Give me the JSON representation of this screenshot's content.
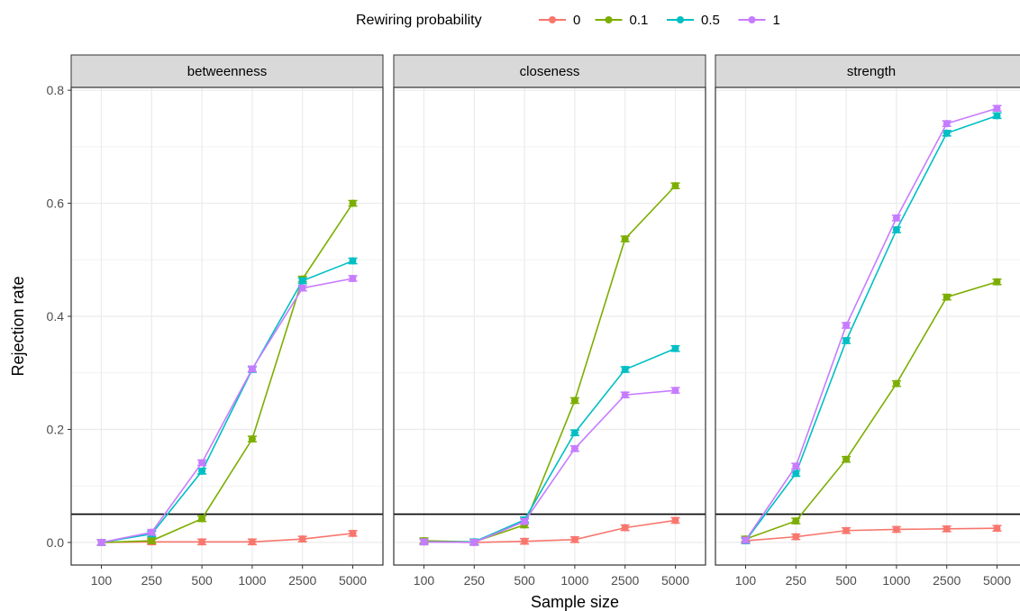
{
  "chart_data": {
    "type": "line",
    "facets": [
      "betweenness",
      "closeness",
      "strength"
    ],
    "categories": [
      "100",
      "250",
      "500",
      "1000",
      "2500",
      "5000"
    ],
    "xlabel": "Sample size",
    "ylabel": "Rejection rate",
    "ylim": [
      -0.04,
      0.805
    ],
    "yticks": [
      "0.0",
      "0.2",
      "0.4",
      "0.6",
      "0.8"
    ],
    "yticks_values": [
      0,
      0.2,
      0.4,
      0.6,
      0.8
    ],
    "reference_line": 0.05,
    "legend": {
      "title": "Rewiring probability",
      "position": "top"
    },
    "grid": true,
    "series": [
      {
        "name": "0",
        "color": "#f8766d",
        "values": {
          "betweenness": [
            0.0,
            0.001,
            0.001,
            0.001,
            0.006,
            0.016
          ],
          "closeness": [
            0.001,
            0.0,
            0.002,
            0.005,
            0.026,
            0.039
          ],
          "strength": [
            0.003,
            0.01,
            0.021,
            0.023,
            0.024,
            0.025
          ]
        }
      },
      {
        "name": "0.1",
        "color": "#7cae00",
        "values": {
          "betweenness": [
            0.0,
            0.003,
            0.042,
            0.183,
            0.466,
            0.6
          ],
          "closeness": [
            0.003,
            0.001,
            0.031,
            0.251,
            0.537,
            0.631
          ],
          "strength": [
            0.006,
            0.038,
            0.147,
            0.281,
            0.434,
            0.461
          ]
        }
      },
      {
        "name": "0.5",
        "color": "#00bfc4",
        "values": {
          "betweenness": [
            0.0,
            0.015,
            0.126,
            0.306,
            0.463,
            0.498
          ],
          "closeness": [
            0.001,
            0.001,
            0.04,
            0.194,
            0.306,
            0.343
          ],
          "strength": [
            0.003,
            0.122,
            0.357,
            0.553,
            0.724,
            0.755
          ]
        }
      },
      {
        "name": "1",
        "color": "#c77cff",
        "values": {
          "betweenness": [
            0.0,
            0.018,
            0.141,
            0.307,
            0.45,
            0.467
          ],
          "closeness": [
            0.001,
            0.0,
            0.037,
            0.166,
            0.261,
            0.269
          ],
          "strength": [
            0.004,
            0.135,
            0.384,
            0.574,
            0.741,
            0.768
          ]
        }
      }
    ]
  }
}
